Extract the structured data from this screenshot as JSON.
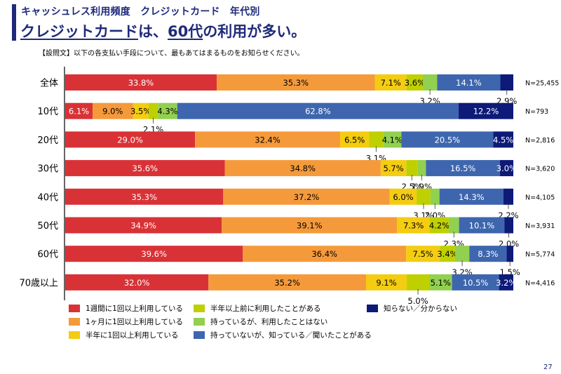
{
  "header": {
    "subtitle": "キャッシュレス利用頻度　クレジットカード　年代別",
    "headline_part1": "クレジットカード",
    "headline_part2": "は、",
    "headline_part3": "60代",
    "headline_part4": "の利用が多い。",
    "question": "【設問文】以下の各支払い手段について、最もあてはまるものをお知らせください。"
  },
  "page_number": "27",
  "colors": {
    "weekly": "#d93236",
    "monthly": "#f59a3b",
    "halfyear": "#f4cc12",
    "over_halfyear_ago": "#bfd000",
    "have_not_used": "#92d050",
    "know_not_have": "#3e66ae",
    "dont_know": "#0d1a78"
  },
  "chart_data": {
    "type": "bar",
    "orientation": "horizontal-stacked-100",
    "title": "キャッシュレス利用頻度　クレジットカード　年代別",
    "xlabel": "",
    "ylabel": "",
    "xlim": [
      0,
      100
    ],
    "grid": false,
    "legend_position": "bottom",
    "categories": [
      "全体",
      "10代",
      "20代",
      "30代",
      "40代",
      "50代",
      "60代",
      "70歳以上"
    ],
    "sample_sizes": [
      "N=25,455",
      "N=793",
      "N=2,816",
      "N=3,620",
      "N=4,105",
      "N=3,931",
      "N=5,774",
      "N=4,416"
    ],
    "series": [
      {
        "name": "1週間に1回以上利用している",
        "color_key": "weekly",
        "label_color": "#ffffff",
        "values": [
          33.8,
          6.1,
          29.0,
          35.6,
          35.3,
          34.9,
          39.6,
          32.0
        ]
      },
      {
        "name": "1ヶ月に1回以上利用している",
        "color_key": "monthly",
        "label_color": "#000000",
        "values": [
          35.3,
          9.0,
          32.4,
          34.8,
          37.2,
          39.1,
          36.4,
          35.2
        ]
      },
      {
        "name": "半年に1回以上利用している",
        "color_key": "halfyear",
        "label_color": "#000000",
        "values": [
          7.1,
          3.5,
          6.5,
          5.7,
          6.0,
          7.3,
          7.5,
          9.1
        ]
      },
      {
        "name": "半年以上前に利用したことがある",
        "color_key": "over_halfyear_ago",
        "label_color": "#000000",
        "values": [
          3.6,
          2.1,
          3.1,
          2.5,
          3.1,
          4.2,
          3.4,
          5.0
        ]
      },
      {
        "name": "持っているが、利用したことはない",
        "color_key": "have_not_used",
        "label_color": "#000000",
        "values": [
          3.2,
          4.3,
          4.1,
          1.9,
          2.0,
          2.3,
          3.2,
          5.1
        ]
      },
      {
        "name": "持っていないが、知っている／聞いたことがある",
        "color_key": "know_not_have",
        "label_color": "#ffffff",
        "values": [
          14.1,
          62.8,
          20.5,
          16.5,
          14.3,
          10.1,
          8.3,
          10.5
        ]
      },
      {
        "name": "知らない／分からない",
        "color_key": "dont_know",
        "label_color": "#ffffff",
        "values": [
          2.9,
          12.2,
          4.5,
          3.0,
          2.2,
          2.0,
          1.5,
          3.2
        ]
      }
    ],
    "outside_labels": [
      {
        "row": 0,
        "series": 4,
        "text": "3.2%"
      },
      {
        "row": 0,
        "series": 6,
        "text": "2.9%"
      },
      {
        "row": 1,
        "series": 3,
        "text": "2.1%"
      },
      {
        "row": 2,
        "series": 3,
        "text": "3.1%"
      },
      {
        "row": 3,
        "series": 3,
        "text": "2.5%"
      },
      {
        "row": 3,
        "series": 4,
        "text": "1.9%"
      },
      {
        "row": 4,
        "series": 3,
        "text": "3.1%"
      },
      {
        "row": 4,
        "series": 4,
        "text": "2.0%"
      },
      {
        "row": 4,
        "series": 6,
        "text": "2.2%"
      },
      {
        "row": 5,
        "series": 4,
        "text": "2.3%"
      },
      {
        "row": 5,
        "series": 6,
        "text": "2.0%"
      },
      {
        "row": 6,
        "series": 4,
        "text": "3.2%"
      },
      {
        "row": 6,
        "series": 6,
        "text": "1.5%"
      },
      {
        "row": 7,
        "series": 3,
        "text": "5.0%"
      }
    ]
  },
  "legend": [
    {
      "label": "1週間に1回以上利用している",
      "color_key": "weekly"
    },
    {
      "label": "1ヶ月に1回以上利用している",
      "color_key": "monthly"
    },
    {
      "label": "半年に1回以上利用している",
      "color_key": "halfyear"
    },
    {
      "label": "半年以上前に利用したことがある",
      "color_key": "over_halfyear_ago"
    },
    {
      "label": "持っているが、利用したことはない",
      "color_key": "have_not_used"
    },
    {
      "label": "持っていないが、知っている／聞いたことがある",
      "color_key": "know_not_have"
    },
    {
      "label": "知らない／分からない",
      "color_key": "dont_know"
    }
  ]
}
